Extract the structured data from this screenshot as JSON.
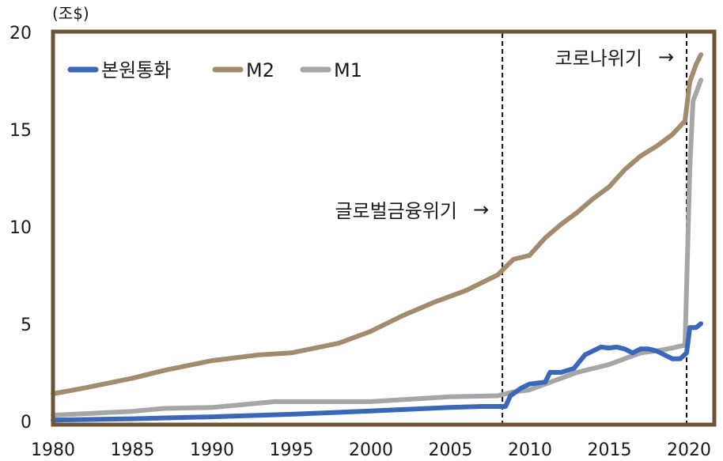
{
  "chart_data": {
    "type": "line",
    "unit_label": "(조$)",
    "x_ticks": [
      "1980",
      "1985",
      "1990",
      "1995",
      "2000",
      "2005",
      "2010",
      "2015",
      "2020"
    ],
    "y_ticks": [
      "0",
      "5",
      "10",
      "15",
      "20"
    ],
    "xlim": [
      1980,
      2021
    ],
    "ylim": [
      0,
      20
    ],
    "grid": false,
    "legend_position": "top-left",
    "series": [
      {
        "name": "본원통화",
        "color": "#3a67b8",
        "points": [
          [
            1980,
            0.15
          ],
          [
            1985,
            0.22
          ],
          [
            1990,
            0.32
          ],
          [
            1995,
            0.45
          ],
          [
            2000,
            0.62
          ],
          [
            2005,
            0.8
          ],
          [
            2007,
            0.85
          ],
          [
            2008.5,
            0.85
          ],
          [
            2008.8,
            1.4
          ],
          [
            2009.5,
            1.8
          ],
          [
            2010,
            2.0
          ],
          [
            2011,
            2.1
          ],
          [
            2011.3,
            2.6
          ],
          [
            2012,
            2.6
          ],
          [
            2012.8,
            2.8
          ],
          [
            2013.5,
            3.5
          ],
          [
            2014.5,
            3.9
          ],
          [
            2015,
            3.85
          ],
          [
            2015.5,
            3.9
          ],
          [
            2016,
            3.8
          ],
          [
            2016.5,
            3.6
          ],
          [
            2017,
            3.8
          ],
          [
            2017.5,
            3.8
          ],
          [
            2018,
            3.7
          ],
          [
            2018.5,
            3.5
          ],
          [
            2019,
            3.3
          ],
          [
            2019.5,
            3.3
          ],
          [
            2019.9,
            3.6
          ],
          [
            2020.1,
            4.9
          ],
          [
            2020.5,
            4.9
          ],
          [
            2020.8,
            5.1
          ]
        ]
      },
      {
        "name": "M2",
        "color": "#a38c6e",
        "points": [
          [
            1980,
            1.5
          ],
          [
            1982,
            1.8
          ],
          [
            1985,
            2.3
          ],
          [
            1987,
            2.7
          ],
          [
            1990,
            3.2
          ],
          [
            1993,
            3.5
          ],
          [
            1995,
            3.6
          ],
          [
            1998,
            4.1
          ],
          [
            2000,
            4.7
          ],
          [
            2002,
            5.5
          ],
          [
            2004,
            6.2
          ],
          [
            2006,
            6.8
          ],
          [
            2008,
            7.6
          ],
          [
            2008.5,
            8.0
          ],
          [
            2009,
            8.4
          ],
          [
            2010,
            8.6
          ],
          [
            2011,
            9.5
          ],
          [
            2012,
            10.2
          ],
          [
            2013,
            10.8
          ],
          [
            2014,
            11.5
          ],
          [
            2015,
            12.1
          ],
          [
            2016,
            13.0
          ],
          [
            2017,
            13.7
          ],
          [
            2018,
            14.2
          ],
          [
            2019,
            14.8
          ],
          [
            2019.8,
            15.5
          ],
          [
            2020.1,
            17.5
          ],
          [
            2020.5,
            18.4
          ],
          [
            2020.8,
            18.9
          ]
        ]
      },
      {
        "name": "M1",
        "color": "#a6a6a6",
        "points": [
          [
            1980,
            0.4
          ],
          [
            1985,
            0.6
          ],
          [
            1987,
            0.75
          ],
          [
            1990,
            0.8
          ],
          [
            1992,
            0.95
          ],
          [
            1994,
            1.1
          ],
          [
            1996,
            1.1
          ],
          [
            1998,
            1.1
          ],
          [
            2000,
            1.1
          ],
          [
            2003,
            1.25
          ],
          [
            2005,
            1.35
          ],
          [
            2008,
            1.4
          ],
          [
            2009,
            1.6
          ],
          [
            2010,
            1.7
          ],
          [
            2011,
            2.0
          ],
          [
            2012,
            2.3
          ],
          [
            2013,
            2.6
          ],
          [
            2014,
            2.8
          ],
          [
            2015,
            3.0
          ],
          [
            2016,
            3.3
          ],
          [
            2017,
            3.6
          ],
          [
            2018,
            3.7
          ],
          [
            2019,
            3.85
          ],
          [
            2019.8,
            4.0
          ],
          [
            2020.1,
            13.0
          ],
          [
            2020.3,
            16.5
          ],
          [
            2020.8,
            17.6
          ]
        ]
      }
    ],
    "annotations": [
      {
        "label": "글로벌금융위기",
        "x": 2008.3,
        "arrow": "→"
      },
      {
        "label": "코로나위기",
        "x": 2019.9,
        "arrow": "→"
      }
    ],
    "colors": {
      "frame": "#6b5536",
      "axis_text": "#1a1a1a"
    }
  }
}
